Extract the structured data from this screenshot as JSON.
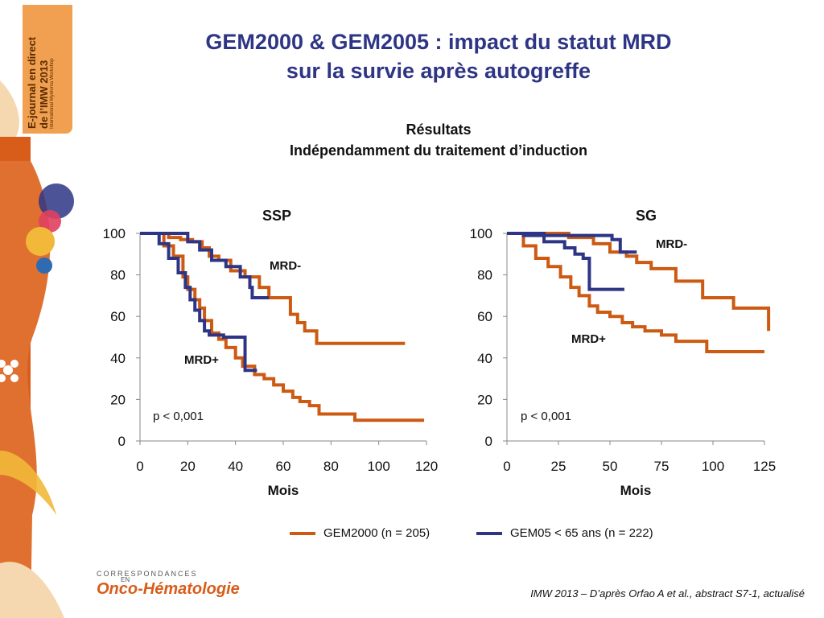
{
  "badge": {
    "line1": "E-journal en direct",
    "line2": "de l’IMW 2013",
    "line3": "International Myeloma Workshop"
  },
  "title": {
    "line1": "GEM2000 & GEM2005 : impact du statut MRD",
    "line2": "sur la survie après autogreffe"
  },
  "subtitle": {
    "line1": "Résultats",
    "line2": "Indépendamment du traitement d’induction"
  },
  "colors": {
    "gem2000": "#cc5a12",
    "gem05": "#2e3585",
    "title": "#2e3585"
  },
  "legend": {
    "items": [
      {
        "label": "GEM2000 (n = 205)",
        "color": "#cc5a12"
      },
      {
        "label": "GEM05 < 65 ans (n = 222)",
        "color": "#2e3585"
      }
    ]
  },
  "logo": {
    "line1": "CORRESPONDANCES",
    "line2": "EN",
    "line3": "Onco-Hématologie"
  },
  "footer": "IMW 2013 – D’après Orfao A et al., abstract S7-1, actualisé",
  "chart_data": [
    {
      "type": "line",
      "title": "SSP",
      "xlabel": "Mois",
      "ylabel": "",
      "xlim": [
        0,
        120
      ],
      "ylim": [
        0,
        100
      ],
      "xticks": [
        0,
        20,
        40,
        60,
        80,
        100,
        120
      ],
      "yticks": [
        0,
        20,
        40,
        60,
        80,
        100
      ],
      "pvalue": "p < 0,001",
      "annotations": [
        {
          "text": "MRD-",
          "x": 55,
          "y": 85
        },
        {
          "text": "MRD+",
          "x": 19,
          "y": 37
        }
      ],
      "series": [
        {
          "name": "GEM2000 (n = 205)",
          "color": "#cc5a12",
          "group": "MRD-",
          "x": [
            0,
            12,
            17,
            22,
            26,
            29,
            33,
            38,
            44,
            50,
            54,
            63,
            66,
            69,
            74,
            111
          ],
          "y": [
            100,
            98,
            97,
            96,
            93,
            89,
            87,
            82,
            79,
            74,
            69,
            61,
            57,
            53,
            47,
            47
          ]
        },
        {
          "name": "GEM2000 (n = 205)",
          "color": "#cc5a12",
          "group": "MRD+",
          "x": [
            0,
            10,
            14,
            18,
            20,
            23,
            25,
            27,
            30,
            33,
            36,
            40,
            43,
            48,
            52,
            56,
            60,
            64,
            67,
            71,
            75,
            90,
            119
          ],
          "y": [
            100,
            94,
            89,
            79,
            73,
            68,
            64,
            58,
            52,
            49,
            45,
            40,
            36,
            32,
            30,
            27,
            24,
            21,
            19,
            17,
            13,
            10,
            10
          ]
        },
        {
          "name": "GEM05 < 65 ans (n = 222)",
          "color": "#2e3585",
          "group": "MRD-",
          "x": [
            0,
            12,
            20,
            25,
            30,
            36,
            42,
            46,
            47,
            54
          ],
          "y": [
            100,
            100,
            96,
            92,
            87,
            84,
            79,
            74,
            69,
            69
          ]
        },
        {
          "name": "GEM05 < 65 ans (n = 222)",
          "color": "#2e3585",
          "group": "MRD+",
          "x": [
            0,
            8,
            12,
            16,
            19,
            21,
            23,
            25,
            27,
            29,
            31,
            35,
            44,
            46,
            49
          ],
          "y": [
            100,
            95,
            88,
            81,
            74,
            68,
            63,
            58,
            53,
            51,
            51,
            50,
            34,
            34,
            34
          ]
        }
      ]
    },
    {
      "type": "line",
      "title": "SG",
      "xlabel": "Mois",
      "ylabel": "",
      "xlim": [
        0,
        125
      ],
      "ylim": [
        0,
        100
      ],
      "xticks": [
        0,
        25,
        50,
        75,
        100,
        125
      ],
      "yticks": [
        0,
        20,
        40,
        60,
        80,
        100
      ],
      "pvalue": "p < 0,001",
      "annotations": [
        {
          "text": "MRD-",
          "x": 73,
          "y": 95
        },
        {
          "text": "MRD+",
          "x": 32,
          "y": 48
        }
      ],
      "series": [
        {
          "name": "GEM2000 (n = 205)",
          "color": "#cc5a12",
          "group": "MRD-",
          "x": [
            0,
            10,
            30,
            42,
            50,
            58,
            63,
            70,
            82,
            95,
            110,
            127
          ],
          "y": [
            100,
            100,
            98,
            95,
            91,
            89,
            86,
            83,
            77,
            69,
            64,
            53
          ]
        },
        {
          "name": "GEM2000 (n = 205)",
          "color": "#cc5a12",
          "group": "MRD+",
          "x": [
            0,
            8,
            14,
            20,
            26,
            31,
            35,
            40,
            44,
            50,
            56,
            61,
            67,
            75,
            82,
            97,
            125
          ],
          "y": [
            100,
            94,
            88,
            84,
            79,
            74,
            70,
            65,
            62,
            60,
            57,
            55,
            53,
            51,
            48,
            43,
            43
          ]
        },
        {
          "name": "GEM05 < 65 ans (n = 222)",
          "color": "#2e3585",
          "group": "MRD-",
          "x": [
            0,
            8,
            40,
            51,
            55,
            63
          ],
          "y": [
            100,
            99,
            99,
            97,
            91,
            91
          ]
        },
        {
          "name": "GEM05 < 65 ans (n = 222)",
          "color": "#2e3585",
          "group": "MRD+",
          "x": [
            0,
            18,
            28,
            33,
            37,
            40,
            57
          ],
          "y": [
            100,
            96,
            93,
            90,
            88,
            73,
            73
          ]
        }
      ]
    }
  ]
}
